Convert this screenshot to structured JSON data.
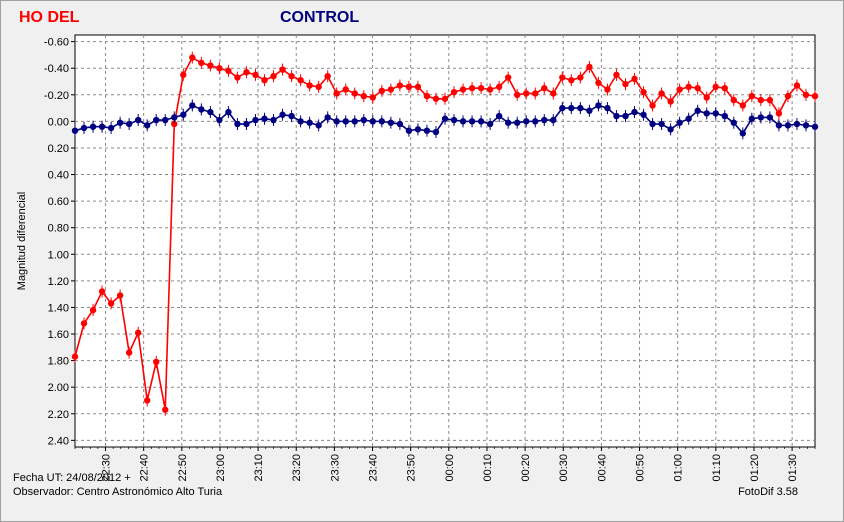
{
  "chart_data": {
    "type": "line",
    "ylabel": "Magnitud diferencial",
    "y_inverted": true,
    "ylim": [
      -0.65,
      2.45
    ],
    "yticks": [
      "-0.60",
      "-0.40",
      "-0.20",
      "0.00",
      "0.20",
      "0.40",
      "0.60",
      "0.80",
      "1.00",
      "1.20",
      "1.40",
      "1.60",
      "1.80",
      "2.00",
      "2.20",
      "2.40"
    ],
    "xlim_minutes": [
      1342,
      1536
    ],
    "xticks": [
      "22:30",
      "22:40",
      "22:50",
      "23:00",
      "23:10",
      "23:20",
      "23:30",
      "23:40",
      "23:50",
      "00:00",
      "00:10",
      "00:20",
      "00:30",
      "00:40",
      "00:50",
      "01:00",
      "01:10",
      "01:20",
      "01:30"
    ],
    "grid": true,
    "series": [
      {
        "name": "HO DEL",
        "color": "#ff0000",
        "values": [
          1.77,
          1.52,
          1.42,
          1.28,
          1.37,
          1.31,
          1.74,
          1.59,
          2.1,
          1.81,
          2.17,
          0.02,
          -0.35,
          -0.48,
          -0.44,
          -0.42,
          -0.4,
          -0.38,
          -0.33,
          -0.37,
          -0.35,
          -0.31,
          -0.34,
          -0.39,
          -0.34,
          -0.31,
          -0.27,
          -0.26,
          -0.34,
          -0.21,
          -0.24,
          -0.21,
          -0.19,
          -0.18,
          -0.23,
          -0.24,
          -0.27,
          -0.26,
          -0.26,
          -0.19,
          -0.17,
          -0.17,
          -0.22,
          -0.24,
          -0.25,
          -0.25,
          -0.24,
          -0.26,
          -0.33,
          -0.2,
          -0.21,
          -0.21,
          -0.25,
          -0.21,
          -0.33,
          -0.31,
          -0.33,
          -0.41,
          -0.29,
          -0.24,
          -0.35,
          -0.28,
          -0.32,
          -0.22,
          -0.12,
          -0.21,
          -0.15,
          -0.24,
          -0.26,
          -0.25,
          -0.18,
          -0.26,
          -0.25,
          -0.16,
          -0.12,
          -0.19,
          -0.16,
          -0.16,
          -0.06,
          -0.19,
          -0.27,
          -0.2,
          -0.19
        ]
      },
      {
        "name": "CONTROL",
        "color": "#000080",
        "values": [
          0.07,
          0.05,
          0.04,
          0.04,
          0.05,
          0.01,
          0.02,
          -0.01,
          0.03,
          -0.01,
          -0.01,
          -0.03,
          -0.05,
          -0.12,
          -0.09,
          -0.07,
          -0.01,
          -0.07,
          0.02,
          0.02,
          -0.01,
          -0.02,
          -0.01,
          -0.05,
          -0.04,
          0.0,
          0.01,
          0.03,
          -0.03,
          0.0,
          0.0,
          0.0,
          -0.01,
          0.0,
          0.0,
          0.01,
          0.02,
          0.07,
          0.06,
          0.07,
          0.08,
          -0.02,
          -0.01,
          0.0,
          0.0,
          0.0,
          0.02,
          -0.04,
          0.01,
          0.01,
          0.0,
          0.0,
          -0.01,
          -0.01,
          -0.1,
          -0.1,
          -0.1,
          -0.08,
          -0.12,
          -0.1,
          -0.04,
          -0.04,
          -0.07,
          -0.05,
          0.02,
          0.02,
          0.06,
          0.01,
          -0.02,
          -0.08,
          -0.06,
          -0.06,
          -0.04,
          0.01,
          0.09,
          -0.02,
          -0.03,
          -0.03,
          0.03,
          0.03,
          0.02,
          0.03,
          0.04
        ]
      }
    ]
  },
  "footer": {
    "date": "Fecha UT: 24/08/2012 +",
    "observer": "Observador: Centro Astronómico Alto Turia",
    "software": "FotoDif 3.58"
  }
}
